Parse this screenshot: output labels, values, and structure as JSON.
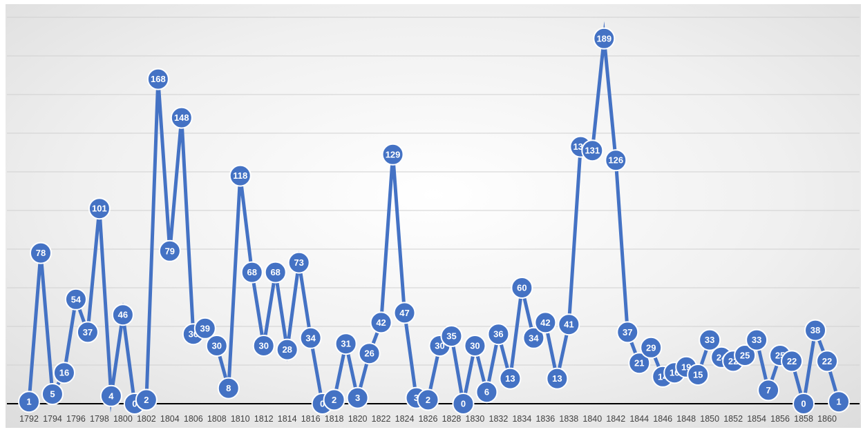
{
  "chart_data": {
    "type": "line",
    "title": "",
    "xlabel": "",
    "ylabel": "",
    "x": [
      1792,
      1793,
      1794,
      1795,
      1796,
      1797,
      1798,
      1799,
      1800,
      1801,
      1802,
      1803,
      1804,
      1805,
      1806,
      1807,
      1808,
      1809,
      1810,
      1811,
      1812,
      1813,
      1814,
      1815,
      1816,
      1817,
      1818,
      1819,
      1820,
      1821,
      1822,
      1823,
      1824,
      1825,
      1826,
      1827,
      1828,
      1829,
      1830,
      1831,
      1832,
      1833,
      1834,
      1835,
      1836,
      1837,
      1838,
      1839,
      1840,
      1841,
      1842,
      1843,
      1844,
      1845,
      1846,
      1847,
      1848,
      1849,
      1850,
      1851,
      1852,
      1853,
      1854,
      1855,
      1856,
      1857,
      1858,
      1859,
      1860,
      1861
    ],
    "tick_labels": [
      "1792",
      "1794",
      "1796",
      "1798",
      "1800",
      "1802",
      "1804",
      "1806",
      "1808",
      "1810",
      "1812",
      "1814",
      "1816",
      "1818",
      "1820",
      "1822",
      "1824",
      "1826",
      "1828",
      "1830",
      "1832",
      "1834",
      "1836",
      "1838",
      "1840",
      "1842",
      "1844",
      "1846",
      "1848",
      "1850",
      "1852",
      "1854",
      "1856",
      "1858",
      "1860"
    ],
    "series": [
      {
        "values": [
          1,
          78,
          5,
          16,
          54,
          37,
          101,
          4,
          46,
          0,
          2,
          168,
          79,
          148,
          36,
          39,
          30,
          8,
          118,
          68,
          30,
          68,
          28,
          73,
          34,
          0,
          2,
          31,
          3,
          26,
          42,
          129,
          47,
          3,
          2,
          30,
          35,
          0,
          30,
          6,
          36,
          13,
          60,
          34,
          42,
          13,
          41,
          133,
          131,
          189,
          126,
          37,
          21,
          29,
          14,
          16,
          19,
          15,
          33,
          24,
          22,
          25,
          33,
          7,
          25,
          22,
          0,
          38,
          22,
          1
        ]
      }
    ],
    "ylim": [
      0,
      200
    ],
    "grid": true,
    "legend": "none",
    "colors": {
      "line": "#4472C4",
      "marker": "#4472C4",
      "marker_stroke": "#ffffff",
      "label_text": "#ffffff",
      "gridline": "#d0d0d0",
      "axis": "#000000",
      "tick_text": "#404040"
    }
  }
}
